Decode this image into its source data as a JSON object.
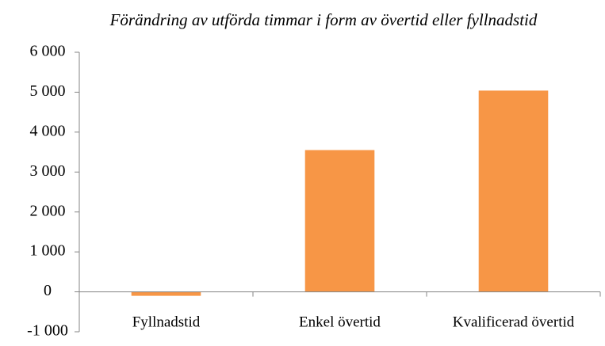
{
  "chart_data": {
    "type": "bar",
    "title": "Förändring av utförda timmar i form av övertid eller fyllnadstid",
    "categories": [
      "Fyllnadstid",
      "Enkel övertid",
      "Kvalificerad övertid"
    ],
    "values": [
      -100,
      3550,
      5040
    ],
    "color": "#f79646",
    "ylim": [
      -1000,
      6000
    ],
    "yticks": [
      {
        "value": -1000,
        "label": "-1 000"
      },
      0,
      {
        "value": 1000,
        "label": "1 000"
      },
      {
        "value": 2000,
        "label": "2 000"
      },
      {
        "value": 3000,
        "label": "3 000"
      },
      {
        "value": 4000,
        "label": "4 000"
      },
      {
        "value": 5000,
        "label": "5 000"
      },
      {
        "value": 6000,
        "label": "6 000"
      }
    ],
    "grid": false
  }
}
